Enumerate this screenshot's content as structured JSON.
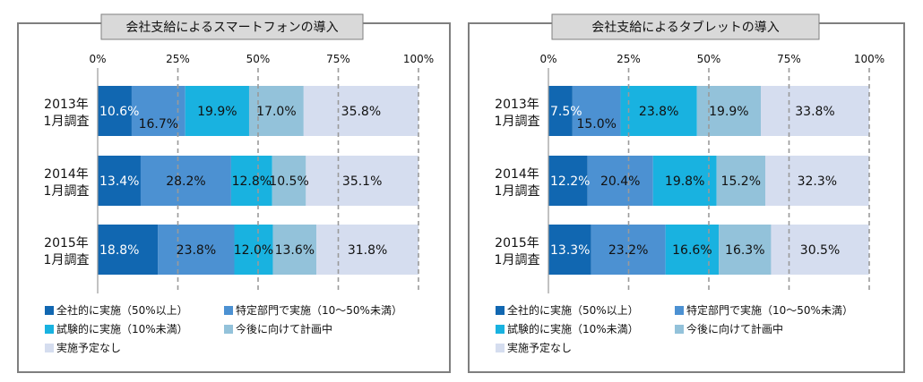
{
  "chart_data": [
    {
      "type": "bar",
      "orientation": "horizontal",
      "stacked": true,
      "title": "会社支給によるスマートフォンの導入",
      "xlim": [
        0,
        100
      ],
      "xticks": [
        "0%",
        "25%",
        "50%",
        "75%",
        "100%"
      ],
      "categories": [
        [
          "2013年",
          "1月調査"
        ],
        [
          "2014年",
          "1月調査"
        ],
        [
          "2015年",
          "1月調査"
        ]
      ],
      "series": [
        {
          "name": "全社的に実施（50%以上）",
          "color": "#1167b1",
          "label_color": "#ffffff",
          "values": [
            10.6,
            13.4,
            18.8
          ]
        },
        {
          "name": "特定部門で実施（10～50%未満）",
          "color": "#4c91d2",
          "label_color": "#111111",
          "values": [
            16.7,
            28.2,
            23.8
          ]
        },
        {
          "name": "試験的に実施（10%未満）",
          "color": "#19b2e0",
          "label_color": "#111111",
          "values": [
            19.9,
            12.8,
            12.0
          ]
        },
        {
          "name": "今後に向けて計画中",
          "color": "#93c2da",
          "label_color": "#111111",
          "values": [
            17.0,
            10.5,
            13.6
          ]
        },
        {
          "name": "実施予定なし",
          "color": "#d5ddef",
          "label_color": "#111111",
          "values": [
            35.8,
            35.1,
            31.8
          ]
        }
      ],
      "value_labels": [
        [
          "10.6%",
          "16.7%",
          "19.9%",
          "17.0%",
          "35.8%"
        ],
        [
          "13.4%",
          "28.2%",
          "12.8%",
          "10.5%",
          "35.1%"
        ],
        [
          "18.8%",
          "23.8%",
          "12.0%",
          "13.6%",
          "31.8%"
        ]
      ],
      "grid": true,
      "legend_position": "bottom"
    },
    {
      "type": "bar",
      "orientation": "horizontal",
      "stacked": true,
      "title": "会社支給によるタブレットの導入",
      "xlim": [
        0,
        100
      ],
      "xticks": [
        "0%",
        "25%",
        "50%",
        "75%",
        "100%"
      ],
      "categories": [
        [
          "2013年",
          "1月調査"
        ],
        [
          "2014年",
          "1月調査"
        ],
        [
          "2015年",
          "1月調査"
        ]
      ],
      "series": [
        {
          "name": "全社的に実施（50%以上）",
          "color": "#1167b1",
          "label_color": "#ffffff",
          "values": [
            7.5,
            12.2,
            13.3
          ]
        },
        {
          "name": "特定部門で実施（10～50%未満）",
          "color": "#4c91d2",
          "label_color": "#111111",
          "values": [
            15.0,
            20.4,
            23.2
          ]
        },
        {
          "name": "試験的に実施（10%未満）",
          "color": "#19b2e0",
          "label_color": "#111111",
          "values": [
            23.8,
            19.8,
            16.6
          ]
        },
        {
          "name": "今後に向けて計画中",
          "color": "#93c2da",
          "label_color": "#111111",
          "values": [
            19.9,
            15.2,
            16.3
          ]
        },
        {
          "name": "実施予定なし",
          "color": "#d5ddef",
          "label_color": "#111111",
          "values": [
            33.8,
            32.3,
            30.5
          ]
        }
      ],
      "value_labels": [
        [
          "7.5%",
          "15.0%",
          "23.8%",
          "19.9%",
          "33.8%"
        ],
        [
          "12.2%",
          "20.4%",
          "19.8%",
          "15.2%",
          "32.3%"
        ],
        [
          "13.3%",
          "23.2%",
          "16.6%",
          "16.3%",
          "30.5%"
        ]
      ],
      "grid": true,
      "legend_position": "bottom"
    }
  ]
}
